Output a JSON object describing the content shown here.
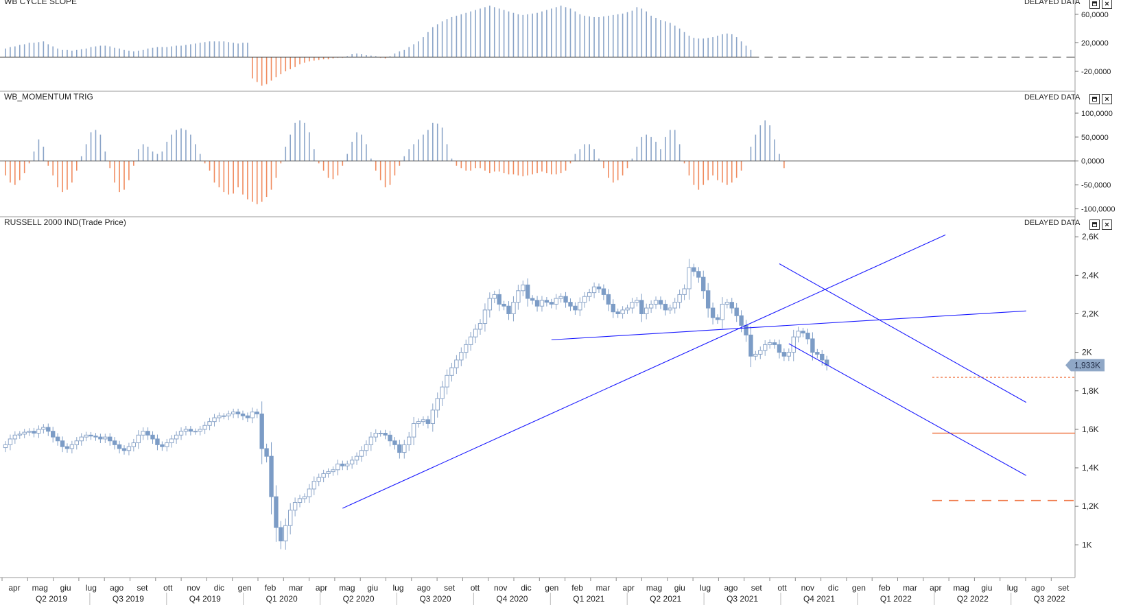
{
  "panels": {
    "cycle": {
      "title": "WB CYCLE SLOPE",
      "status": "DELAYED DATA"
    },
    "momentum": {
      "title": "WB_MOMENTUM TRIG",
      "status": "DELAYED DATA"
    },
    "price": {
      "title": "RUSSELL 2000 IND(Trade Price)",
      "status": "DELAYED DATA"
    }
  },
  "colors": {
    "up": "#8aa4c8",
    "up_fill": "#ffffff",
    "down": "#7c9cc6",
    "negative": "#f08a5d",
    "trendline": "#1a1aff",
    "level": "#f07a4a"
  },
  "chart_data": [
    {
      "type": "bar",
      "title": "WB CYCLE SLOPE",
      "ylim": [
        -45000,
        80000
      ],
      "yticks": [
        "60,0000",
        "20,0000",
        "-20,0000"
      ],
      "ytick_values": [
        60000,
        20000,
        -20000
      ],
      "values": [
        12000,
        14000,
        15000,
        17000,
        18000,
        20000,
        20000,
        21000,
        22000,
        18000,
        15000,
        12000,
        10000,
        10000,
        9000,
        10000,
        11000,
        12000,
        14000,
        15000,
        16000,
        16000,
        15000,
        13000,
        12000,
        10000,
        9000,
        8000,
        9000,
        10000,
        12000,
        13000,
        14000,
        14000,
        14000,
        15000,
        16000,
        16000,
        17000,
        18000,
        19000,
        20000,
        21000,
        22000,
        22000,
        22000,
        22000,
        21000,
        20000,
        19000,
        20000,
        20000,
        -30000,
        -35000,
        -40000,
        -38000,
        -33000,
        -28000,
        -24000,
        -20000,
        -17000,
        -14000,
        -10000,
        -8000,
        -6000,
        -5000,
        -4000,
        -3000,
        -3000,
        -2000,
        -1000,
        -1000,
        1000,
        4000,
        5000,
        4000,
        3000,
        2000,
        1000,
        -1000,
        -2000,
        1000,
        5000,
        8000,
        10000,
        14000,
        18000,
        22000,
        28000,
        35000,
        42000,
        46000,
        50000,
        53000,
        56000,
        58000,
        60000,
        62000,
        64000,
        66000,
        68000,
        70000,
        72000,
        70000,
        68000,
        66000,
        64000,
        62000,
        60000,
        59000,
        60000,
        61000,
        62000,
        64000,
        66000,
        68000,
        70000,
        72000,
        70000,
        68000,
        64000,
        60000,
        58000,
        57000,
        56000,
        56000,
        57000,
        58000,
        59000,
        60000,
        61000,
        63000,
        65000,
        70000,
        68000,
        64000,
        58000,
        55000,
        52000,
        50000,
        48000,
        44000,
        40000,
        35000,
        30000,
        27000,
        26000,
        26000,
        27000,
        28000,
        30000,
        32000,
        33000,
        32000,
        28000,
        22000,
        16000,
        10000
      ],
      "zero_line": "dashed"
    },
    {
      "type": "bar",
      "title": "WB_MOMENTUM TRIG",
      "ylim": [
        -105000,
        110000
      ],
      "yticks": [
        "100,0000",
        "50,0000",
        "0,0000",
        "-50,0000",
        "-100,0000"
      ],
      "ytick_values": [
        100000,
        50000,
        0,
        -50000,
        -100000
      ],
      "values": [
        -30000,
        -45000,
        -50000,
        -40000,
        -25000,
        -5000,
        20000,
        45000,
        30000,
        -10000,
        -30000,
        -55000,
        -65000,
        -60000,
        -45000,
        -20000,
        10000,
        35000,
        60000,
        65000,
        55000,
        20000,
        -15000,
        -45000,
        -65000,
        -60000,
        -40000,
        -10000,
        25000,
        35000,
        30000,
        20000,
        15000,
        20000,
        40000,
        55000,
        65000,
        68000,
        65000,
        55000,
        35000,
        15000,
        -5000,
        -20000,
        -45000,
        -55000,
        -65000,
        -70000,
        -68000,
        -55000,
        -70000,
        -80000,
        -85000,
        -90000,
        -85000,
        -75000,
        -60000,
        -35000,
        -5000,
        30000,
        55000,
        80000,
        85000,
        80000,
        60000,
        25000,
        -5000,
        -20000,
        -35000,
        -38000,
        -30000,
        -10000,
        15000,
        40000,
        60000,
        55000,
        35000,
        5000,
        -20000,
        -40000,
        -55000,
        -50000,
        -30000,
        -10000,
        10000,
        25000,
        35000,
        45000,
        55000,
        65000,
        80000,
        78000,
        70000,
        35000,
        5000,
        -10000,
        -15000,
        -20000,
        -20000,
        -15000,
        -15000,
        -20000,
        -25000,
        -22000,
        -22000,
        -25000,
        -28000,
        -28000,
        -30000,
        -32000,
        -30000,
        -28000,
        -25000,
        -22000,
        -25000,
        -28000,
        -28000,
        -25000,
        -20000,
        -5000,
        15000,
        25000,
        35000,
        35000,
        25000,
        5000,
        -15000,
        -35000,
        -45000,
        -40000,
        -30000,
        -15000,
        5000,
        30000,
        50000,
        55000,
        50000,
        40000,
        25000,
        50000,
        65000,
        65000,
        35000,
        -5000,
        -30000,
        -50000,
        -60000,
        -50000,
        -40000,
        -30000,
        -40000,
        -45000,
        -50000,
        -45000,
        -35000,
        -20000,
        0,
        30000,
        55000,
        75000,
        85000,
        75000,
        45000,
        15000,
        -15000
      ]
    },
    {
      "type": "candlestick",
      "title": "RUSSELL 2000 IND(Trade Price)",
      "ylim": [
        830,
        2640
      ],
      "yticks": [
        "2,6K",
        "2,4K",
        "2,2K",
        "2K",
        "1,8K",
        "1,6K",
        "1,4K",
        "1,2K",
        "1K"
      ],
      "ytick_values": [
        2600,
        2400,
        2200,
        2000,
        1800,
        1600,
        1400,
        1200,
        1000
      ],
      "last_price_label": "1,933K",
      "closes": [
        1520,
        1550,
        1570,
        1575,
        1585,
        1590,
        1580,
        1600,
        1610,
        1590,
        1560,
        1540,
        1510,
        1500,
        1520,
        1540,
        1560,
        1570,
        1565,
        1560,
        1550,
        1560,
        1540,
        1520,
        1500,
        1490,
        1510,
        1530,
        1570,
        1590,
        1570,
        1550,
        1520,
        1510,
        1530,
        1550,
        1570,
        1590,
        1600,
        1590,
        1590,
        1600,
        1620,
        1640,
        1660,
        1670,
        1670,
        1680,
        1690,
        1680,
        1670,
        1660,
        1690,
        1680,
        1500,
        1460,
        1250,
        1090,
        1020,
        1100,
        1180,
        1220,
        1240,
        1250,
        1290,
        1330,
        1350,
        1370,
        1380,
        1390,
        1420,
        1410,
        1420,
        1440,
        1460,
        1490,
        1520,
        1560,
        1580,
        1580,
        1570,
        1540,
        1520,
        1480,
        1520,
        1560,
        1630,
        1640,
        1650,
        1630,
        1700,
        1760,
        1820,
        1880,
        1920,
        1960,
        2000,
        2040,
        2080,
        2120,
        2150,
        2220,
        2280,
        2300,
        2250,
        2240,
        2200,
        2260,
        2320,
        2350,
        2280,
        2270,
        2240,
        2270,
        2260,
        2250,
        2280,
        2290,
        2260,
        2240,
        2220,
        2260,
        2290,
        2310,
        2340,
        2330,
        2300,
        2250,
        2210,
        2200,
        2220,
        2230,
        2260,
        2270,
        2200,
        2230,
        2250,
        2270,
        2250,
        2220,
        2230,
        2260,
        2300,
        2330,
        2440,
        2420,
        2390,
        2320,
        2230,
        2180,
        2170,
        2250,
        2260,
        2230,
        2190,
        2140,
        2090,
        1980,
        1990,
        2010,
        2040,
        2050,
        2040,
        2000,
        1980,
        2000,
        2080,
        2110,
        2100,
        2070,
        2000,
        1990,
        1960,
        1933
      ],
      "levels": [
        {
          "value": 1870,
          "style": "dotted"
        },
        {
          "value": 1580,
          "style": "solid"
        },
        {
          "value": 1230,
          "style": "dashed"
        }
      ],
      "trendlines": [
        {
          "from": {
            "week": 71,
            "price": 1190
          },
          "to": {
            "week": 198,
            "price": 2610
          }
        },
        {
          "from": {
            "week": 115,
            "price": 2065
          },
          "to": {
            "week": 215,
            "price": 2215
          }
        },
        {
          "from": {
            "week": 163,
            "price": 2460
          },
          "to": {
            "week": 215,
            "price": 1740
          }
        },
        {
          "from": {
            "week": 165,
            "price": 2045
          },
          "to": {
            "week": 215,
            "price": 1360
          }
        }
      ],
      "months": [
        "apr",
        "mag",
        "giu",
        "lug",
        "ago",
        "set",
        "ott",
        "nov",
        "dic",
        "gen",
        "feb",
        "mar",
        "apr",
        "mag",
        "giu",
        "lug",
        "ago",
        "set",
        "ott",
        "nov",
        "dic",
        "gen",
        "feb",
        "mar",
        "apr",
        "mag",
        "giu",
        "lug",
        "ago",
        "set",
        "ott",
        "nov",
        "dic",
        "gen",
        "feb",
        "mar",
        "apr",
        "mag",
        "giu",
        "lug",
        "ago",
        "set"
      ],
      "quarters": [
        "Q2 2019",
        "Q3 2019",
        "Q4 2019",
        "Q1 2020",
        "Q2 2020",
        "Q3 2020",
        "Q4 2020",
        "Q1 2021",
        "Q2 2021",
        "Q3 2021",
        "Q4 2021",
        "Q1 2022",
        "Q2 2022",
        "Q3 2022"
      ]
    }
  ]
}
